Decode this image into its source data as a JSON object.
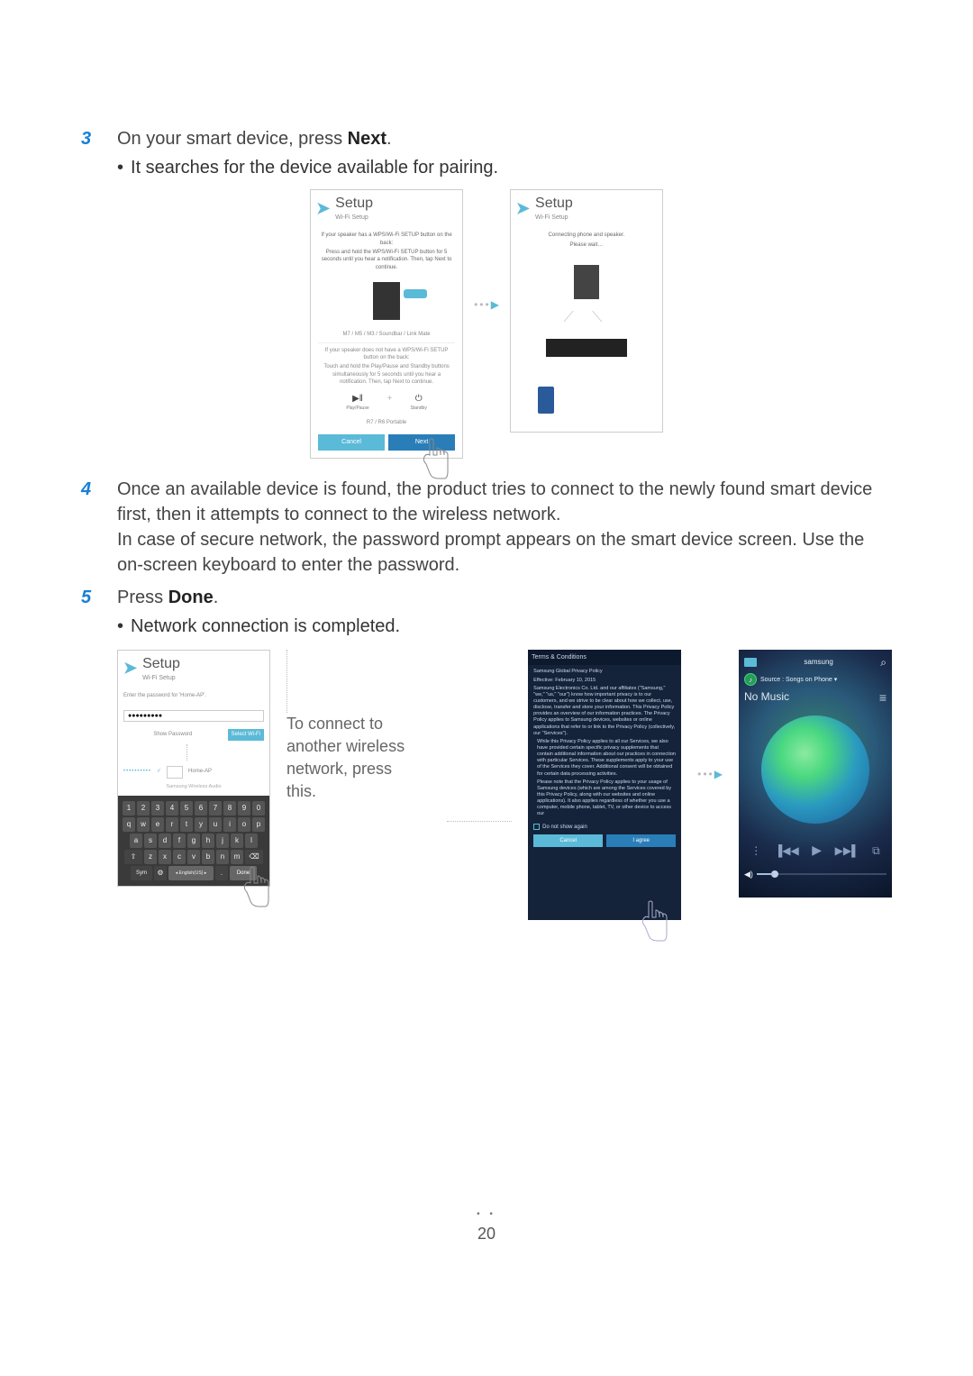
{
  "step3": {
    "num": "3",
    "text_pre": "On your smart device, press ",
    "text_bold": "Next",
    "text_post": ".",
    "bullet": "It searches for the device available for pairing."
  },
  "step4": {
    "num": "4",
    "line1": "Once an available device is found, the product tries to connect to the newly found smart device first, then it attempts to connect to the wireless network.",
    "line2": "In case of secure network, the password prompt appears on the smart device screen. Use the on-screen keyboard to enter the password."
  },
  "step5": {
    "num": "5",
    "text_pre": "Press ",
    "text_bold": "Done",
    "text_post": ".",
    "bullet": "Network connection is completed."
  },
  "setup1": {
    "title": "Setup",
    "sub": "Wi-Fi Setup",
    "p1": "If your speaker has a WPS/Wi-Fi SETUP button on the back:",
    "p2": "Press and hold the WPS/Wi-Fi SETUP button for 5 seconds until you hear a notification. Then, tap Next to continue.",
    "models": "M7 / M5 / M3 / Soundbar / Link Mate",
    "p3": "If your speaker does not have a WPS/Wi-Fi SETUP button on the back:",
    "p4": "Touch and hold the Play/Pause and Standby buttons simultaneously for 5 seconds until you hear a notification. Then, tap Next to continue.",
    "play_lbl": "Play/Pause",
    "standby_lbl": "Standby",
    "models2": "R7 / R6 Portable",
    "cancel": "Cancel",
    "next": "Next"
  },
  "setup2": {
    "title": "Setup",
    "sub": "Wi-Fi Setup",
    "msg1": "Connecting phone and speaker.",
    "msg2": "Please wait…"
  },
  "setup3": {
    "title": "Setup",
    "sub": "Wi-Fi Setup",
    "prompt": "Enter the password for 'Home-AP'.",
    "pw_masked": "●●●●●●●●●",
    "show_pw": "Show Password",
    "select_wifi": "Select Wi-Fi",
    "ap_name": "Home-AP",
    "brand": "Samsung Wireless Audio"
  },
  "annotation": "To connect to another wireless network, press this.",
  "keyboard": {
    "row1": [
      "1",
      "2",
      "3",
      "4",
      "5",
      "6",
      "7",
      "8",
      "9",
      "0"
    ],
    "row2": [
      "q",
      "w",
      "e",
      "r",
      "t",
      "y",
      "u",
      "i",
      "o",
      "p"
    ],
    "row3": [
      "a",
      "s",
      "d",
      "f",
      "g",
      "h",
      "j",
      "k",
      "l"
    ],
    "row4_shift": "⇧",
    "row4": [
      "z",
      "x",
      "c",
      "v",
      "b",
      "n",
      "m"
    ],
    "row4_del": "⌫",
    "sym": "Sym",
    "gear": "⚙",
    "lang": "◂ English(US) ▸",
    "done": "Done"
  },
  "terms": {
    "title": "Terms & Conditions",
    "h1": "Samsung Global Privacy Policy",
    "h2": "Effective: February 10, 2015",
    "body1": "Samsung Electronics Co. Ltd. and our affiliates (\"Samsung,\" \"we,\" \"us,\" \"our\") know how important privacy is to our customers, and we strive to be clear about how we collect, use, disclose, transfer and store your information. This Privacy Policy provides an overview of our information practices. The Privacy Policy applies to Samsung devices, websites or online applications that refer to or link to the Privacy Policy (collectively, our \"Services\").",
    "body2": "While this Privacy Policy applies to all our Services, we also have provided certain specific privacy supplements that contain additional information about our practices in connection with particular Services. These supplements apply to your use of the Services they cover. Additional consent will be obtained for certain data processing activities.",
    "body3": "Please note that the Privacy Policy applies to your usage of Samsung devices (which are among the Services covered by this Privacy Policy, along with our websites and online applications). It also applies regardless of whether you use a computer, mobile phone, tablet, TV, or other device to access our",
    "dns": "Do not show again",
    "cancel": "Cancel",
    "agree": "I agree"
  },
  "music": {
    "brand": "samsung",
    "source_lbl": "Source : Songs on Phone ▾",
    "no_music": "No Music",
    "controls": {
      "menu": "⋮",
      "prev": "▐◀◀",
      "play": "▶",
      "next": "▶▶▌",
      "speaker": "⧉"
    },
    "vol_icon": "◀)"
  },
  "page_num": "20"
}
